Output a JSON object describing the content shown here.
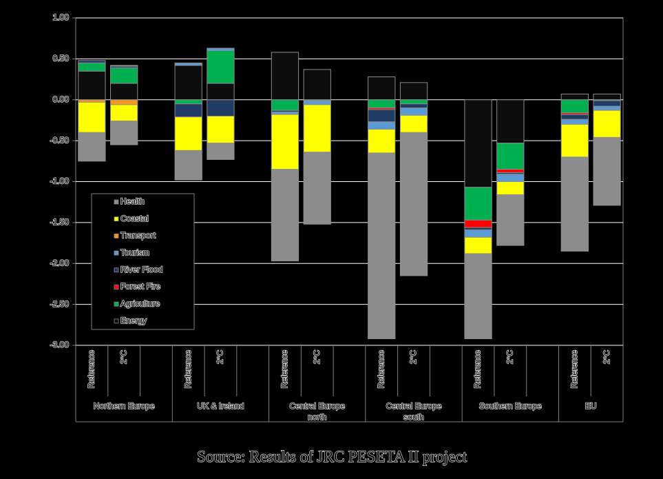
{
  "chart_data": {
    "type": "stacked-bar",
    "source": "Source: Results of JRC PESETA II project",
    "categories": [
      "Reference",
      "2°C",
      null,
      "Reference",
      "2°C",
      null,
      "Reference",
      "2°C",
      null,
      "Reference",
      "2°C",
      null,
      "Reference",
      "2°C",
      null,
      "Reference",
      "2°C"
    ],
    "groups": [
      "Northern Europe",
      "UK & Ireland",
      "Central Europe north",
      "Central Europe south",
      "Southern Europe",
      "EU"
    ],
    "ylim": [
      -3,
      1
    ],
    "yticks": [
      {
        "value": 1,
        "label": "1.00"
      },
      {
        "value": 0.5,
        "label": "0.50"
      },
      {
        "value": 0,
        "label": "0.00"
      },
      {
        "value": -0.5,
        "label": "-0.50"
      },
      {
        "value": -1,
        "label": "-1.00"
      },
      {
        "value": -1.5,
        "label": "-1.50"
      },
      {
        "value": -2,
        "label": "-2.00"
      },
      {
        "value": -2.5,
        "label": "-2.50"
      },
      {
        "value": -3,
        "label": "-3.00"
      }
    ],
    "grid": true,
    "legend": "lower-left",
    "series": [
      {
        "name": "Health",
        "color": "#8c8c8c",
        "values": [
          -0.35,
          -0.29,
          null,
          -0.36,
          -0.2,
          null,
          -1.12,
          -0.88,
          null,
          -2.27,
          -1.75,
          null,
          -1.04,
          -0.62,
          null,
          -1.15,
          -0.83
        ]
      },
      {
        "name": "Coastal",
        "color": "#ffff00",
        "values": [
          -0.37,
          -0.2,
          null,
          -0.41,
          -0.33,
          null,
          -0.67,
          -0.58,
          null,
          -0.29,
          -0.21,
          null,
          -0.2,
          -0.16,
          null,
          -0.4,
          -0.33
        ]
      },
      {
        "name": "Transport",
        "color": "#f7961e",
        "values": [
          -0.03,
          -0.06,
          null,
          0,
          0,
          null,
          0,
          0,
          null,
          0,
          0,
          null,
          0,
          0,
          null,
          0,
          0
        ]
      },
      {
        "name": "Tourism",
        "color": "#5b9bd5",
        "values": [
          0,
          0.01,
          null,
          0.03,
          0.03,
          null,
          -0.03,
          -0.05,
          null,
          -0.09,
          -0.09,
          null,
          -0.09,
          -0.09,
          null,
          -0.06,
          -0.05
        ]
      },
      {
        "name": "River Flood",
        "color": "#1f3c64",
        "values": [
          0.03,
          0.02,
          null,
          -0.16,
          -0.2,
          null,
          -0.02,
          0,
          null,
          -0.15,
          -0.05,
          null,
          -0.03,
          -0.02,
          null,
          -0.06,
          -0.07
        ]
      },
      {
        "name": "Forest Fire",
        "color": "#ff0000",
        "values": [
          0,
          0,
          null,
          0,
          0,
          null,
          0,
          0,
          null,
          -0.02,
          0,
          null,
          -0.09,
          -0.04,
          null,
          -0.02,
          0
        ]
      },
      {
        "name": "Agriculture",
        "color": "#00b050",
        "values": [
          0.1,
          0.19,
          null,
          -0.05,
          0.4,
          null,
          -0.13,
          -0.01,
          null,
          -0.1,
          -0.05,
          null,
          -0.4,
          -0.32,
          null,
          -0.16,
          -0.01
        ]
      },
      {
        "name": "Energy",
        "color": "#0d0d0d",
        "values": [
          0.35,
          0.2,
          null,
          0.42,
          0.2,
          null,
          0.58,
          0.37,
          null,
          0.28,
          0.21,
          null,
          -1.07,
          -0.53,
          null,
          0.07,
          0.07
        ]
      }
    ]
  }
}
